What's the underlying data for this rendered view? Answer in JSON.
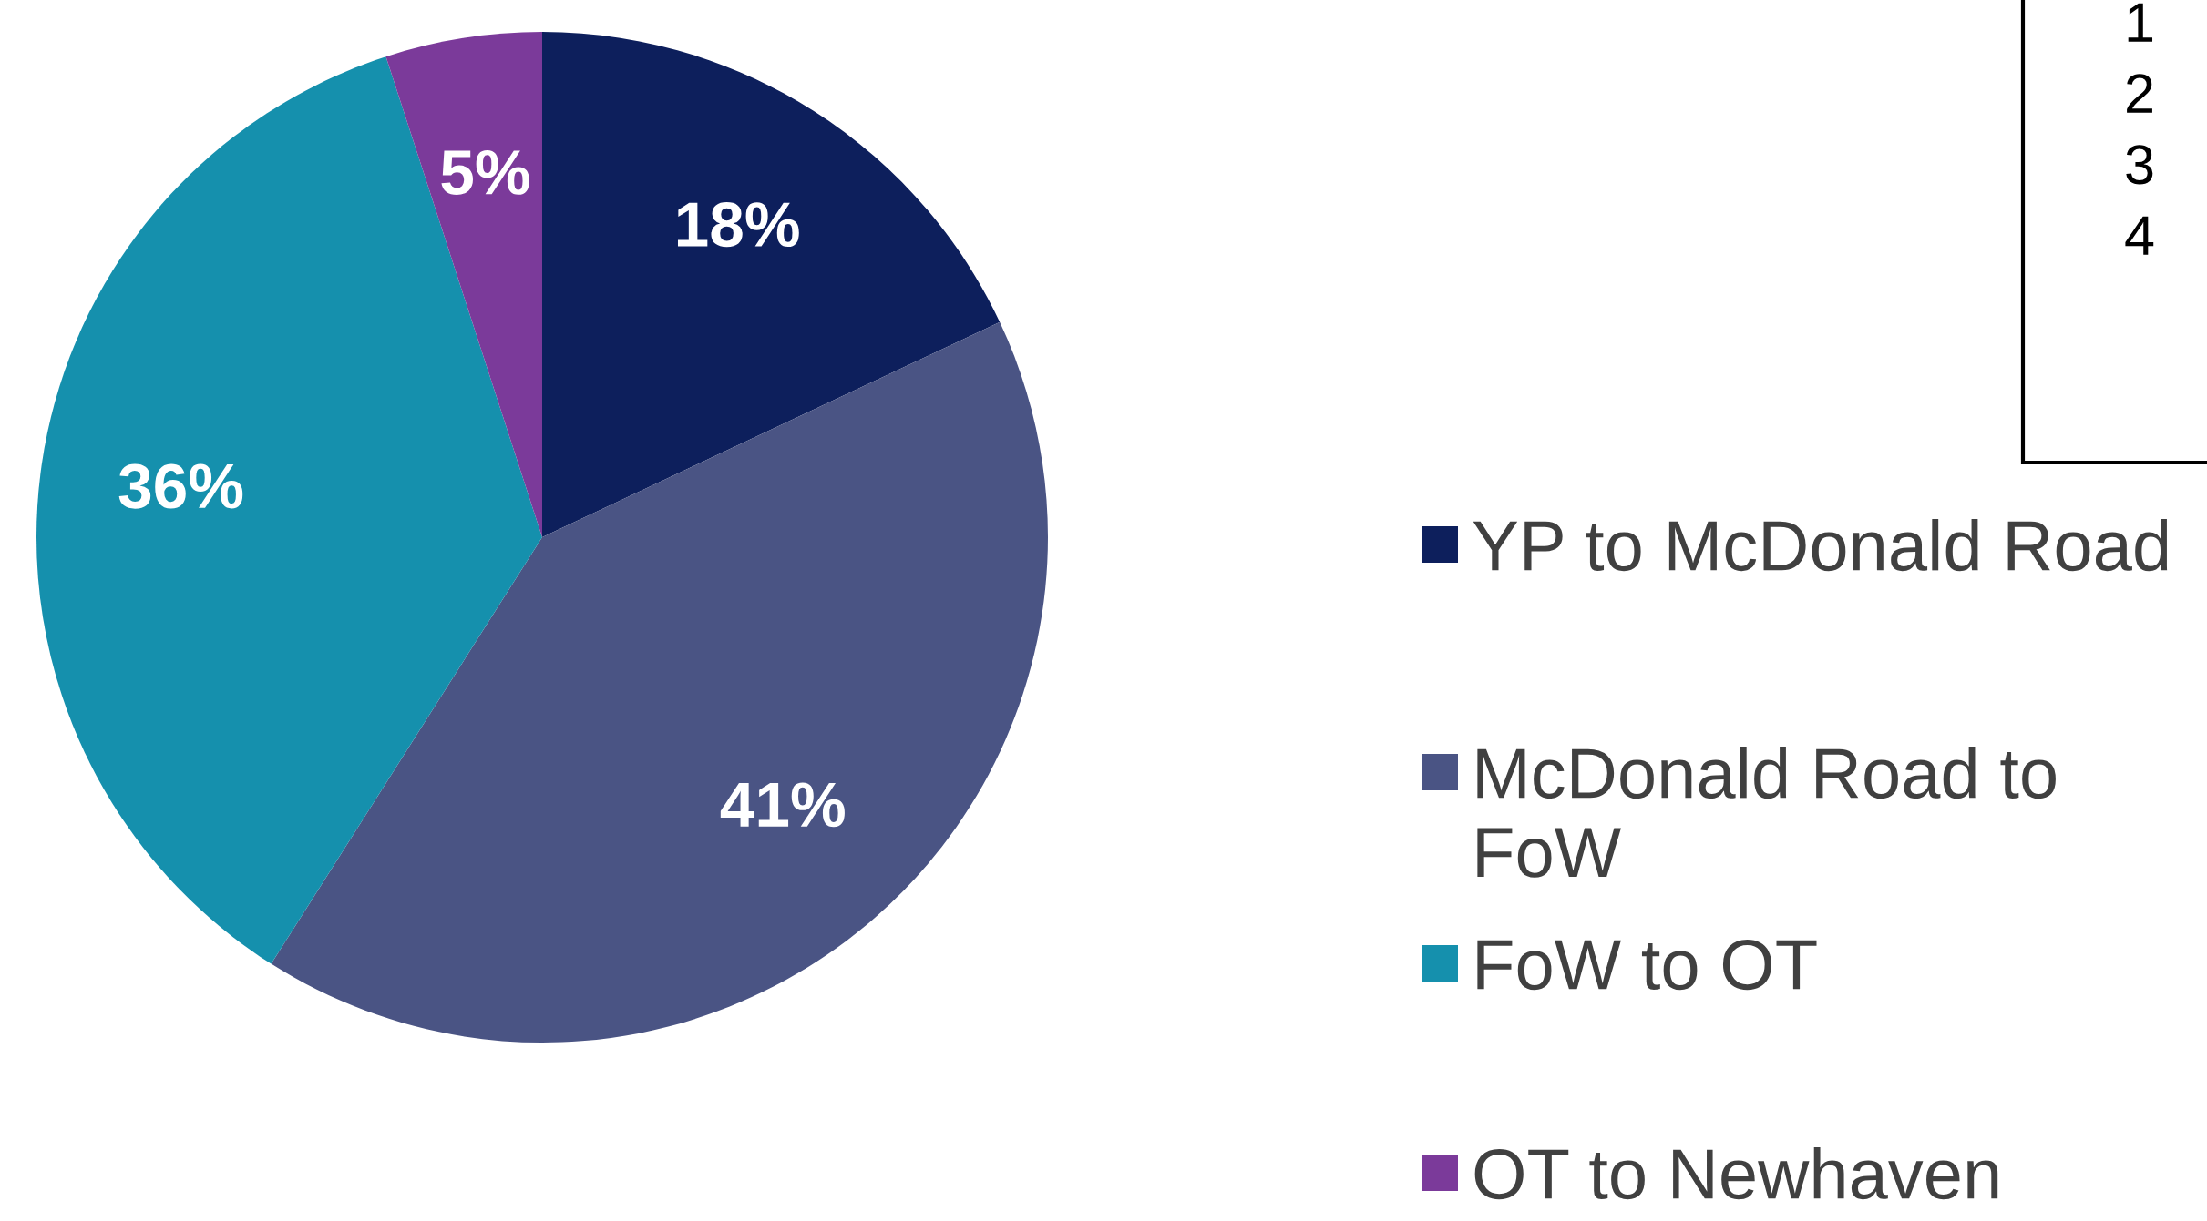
{
  "chart_data": {
    "type": "pie",
    "categories": [
      "YP to McDonald Road",
      "McDonald Road to FoW",
      "FoW to OT",
      "OT to Newhaven"
    ],
    "values": [
      18,
      41,
      36,
      5
    ],
    "colors": [
      "#0d1f5c",
      "#4a5484",
      "#1590ad",
      "#7b3a9a"
    ],
    "value_labels": [
      "18%",
      "41%",
      "36%",
      "5%"
    ],
    "legend": "right",
    "annotations": [
      "1",
      "2",
      "3",
      "4"
    ]
  }
}
